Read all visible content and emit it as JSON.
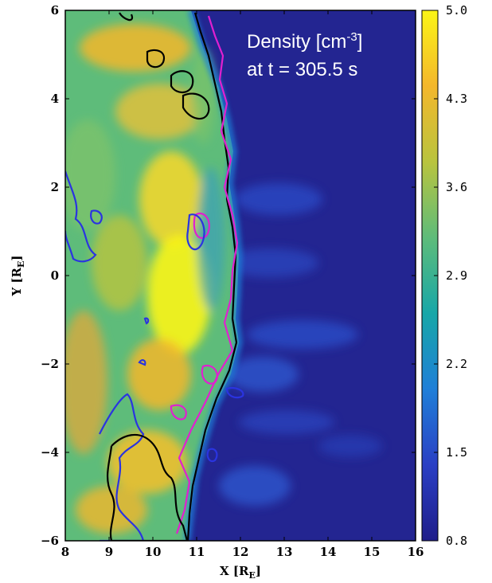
{
  "chart_data": {
    "type": "heatmap",
    "title": "Density [cm-3] at t = 305.5 s",
    "annotation": {
      "line1_prefix": "Density [cm",
      "line1_sup": "-3",
      "line1_suffix": "]",
      "line2": "at t = 305.5 s"
    },
    "xlabel": {
      "main": "X [R",
      "sub": "E",
      "close": "]"
    },
    "ylabel": {
      "main": "Y [R",
      "sub": "E",
      "close": "]"
    },
    "xlim": [
      8,
      16
    ],
    "ylim": [
      -6,
      6
    ],
    "x_ticks": [
      8,
      9,
      10,
      11,
      12,
      13,
      14,
      15,
      16
    ],
    "y_ticks": [
      {
        "value": 6,
        "label": "6"
      },
      {
        "value": 4,
        "label": "4"
      },
      {
        "value": 2,
        "label": "2"
      },
      {
        "value": 0,
        "label": "0"
      },
      {
        "value": -2,
        "label": "−2"
      },
      {
        "value": -4,
        "label": "−4"
      },
      {
        "value": -6,
        "label": "−6"
      }
    ],
    "colorbar": {
      "range": [
        0.8,
        5.0
      ],
      "tick_labels": [
        "5.0",
        "4.3",
        "3.6",
        "2.9",
        "2.2",
        "1.5",
        "0.8"
      ],
      "colormap": [
        "#1f1d8a",
        "#2a3fc4",
        "#1f7fd8",
        "#17a7a8",
        "#5ebc7a",
        "#b9c43e",
        "#f3b72c",
        "#fbf516"
      ]
    },
    "field_description": {
      "boundary_x_at_y": [
        {
          "y": 6,
          "x": 11.55
        },
        {
          "y": 4,
          "x": 11.8
        },
        {
          "y": 2,
          "x": 11.85
        },
        {
          "y": 0,
          "x": 11.9
        },
        {
          "y": -2,
          "x": 11.7
        },
        {
          "y": -4,
          "x": 11.2
        },
        {
          "y": -6,
          "x": 11.0
        }
      ],
      "low_density_side": "right (X > boundary): ~1 cm^-3",
      "high_density_side": "left (X < boundary): ~3.5 to 5 cm^-3"
    },
    "contour_colors": {
      "black": "#000000",
      "magenta": "#e020d0",
      "blue": "#2a34e0"
    }
  }
}
